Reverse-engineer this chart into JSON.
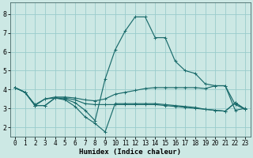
{
  "xlabel": "Humidex (Indice chaleur)",
  "bg_color": "#cce8e4",
  "grid_color": "#99cccc",
  "line_color": "#1a6b6b",
  "xlim": [
    -0.5,
    23.5
  ],
  "ylim": [
    1.5,
    8.6
  ],
  "yticks": [
    2,
    3,
    4,
    5,
    6,
    7,
    8
  ],
  "xticks": [
    0,
    1,
    2,
    3,
    4,
    5,
    6,
    7,
    8,
    9,
    10,
    11,
    12,
    13,
    14,
    15,
    16,
    17,
    18,
    19,
    20,
    21,
    22,
    23
  ],
  "line1_x": [
    0,
    1,
    2,
    3,
    4,
    5,
    6,
    7,
    8,
    9,
    10,
    11,
    12,
    13,
    14,
    15,
    16,
    17,
    18,
    19,
    20,
    21,
    22,
    23
  ],
  "line1_y": [
    4.1,
    3.85,
    3.15,
    3.15,
    3.55,
    3.55,
    3.45,
    3.25,
    3.2,
    3.2,
    3.2,
    3.2,
    3.2,
    3.2,
    3.2,
    3.15,
    3.1,
    3.05,
    3.0,
    2.95,
    2.9,
    2.85,
    3.3,
    2.95
  ],
  "line2_x": [
    0,
    1,
    2,
    3,
    4,
    5,
    6,
    7,
    8,
    9,
    10,
    11,
    12,
    13,
    14,
    15,
    16,
    17,
    18,
    19,
    20,
    21,
    22,
    23
  ],
  "line2_y": [
    4.1,
    3.85,
    3.15,
    3.5,
    3.55,
    3.45,
    3.1,
    2.55,
    2.2,
    1.75,
    3.25,
    3.25,
    3.25,
    3.25,
    3.25,
    3.2,
    3.15,
    3.1,
    3.05,
    2.95,
    2.9,
    2.85,
    3.3,
    2.95
  ],
  "line3_x": [
    0,
    1,
    2,
    3,
    4,
    5,
    6,
    7,
    8,
    9,
    10,
    11,
    12,
    13,
    14,
    15,
    16,
    17,
    18,
    19,
    20,
    21,
    22,
    23
  ],
  "line3_y": [
    4.1,
    3.85,
    3.15,
    3.15,
    3.55,
    3.5,
    3.3,
    2.9,
    2.35,
    4.55,
    6.1,
    7.1,
    7.85,
    7.85,
    6.75,
    6.75,
    5.5,
    5.0,
    4.85,
    4.3,
    4.2,
    4.2,
    3.2,
    2.95
  ],
  "line4_x": [
    0,
    1,
    2,
    3,
    4,
    5,
    6,
    7,
    8,
    9,
    10,
    11,
    12,
    13,
    14,
    15,
    16,
    17,
    18,
    19,
    20,
    21,
    22,
    23
  ],
  "line4_y": [
    4.1,
    3.85,
    3.2,
    3.5,
    3.6,
    3.6,
    3.55,
    3.45,
    3.4,
    3.5,
    3.75,
    3.85,
    3.95,
    4.05,
    4.1,
    4.1,
    4.1,
    4.1,
    4.1,
    4.05,
    4.2,
    4.2,
    2.9,
    3.0
  ]
}
